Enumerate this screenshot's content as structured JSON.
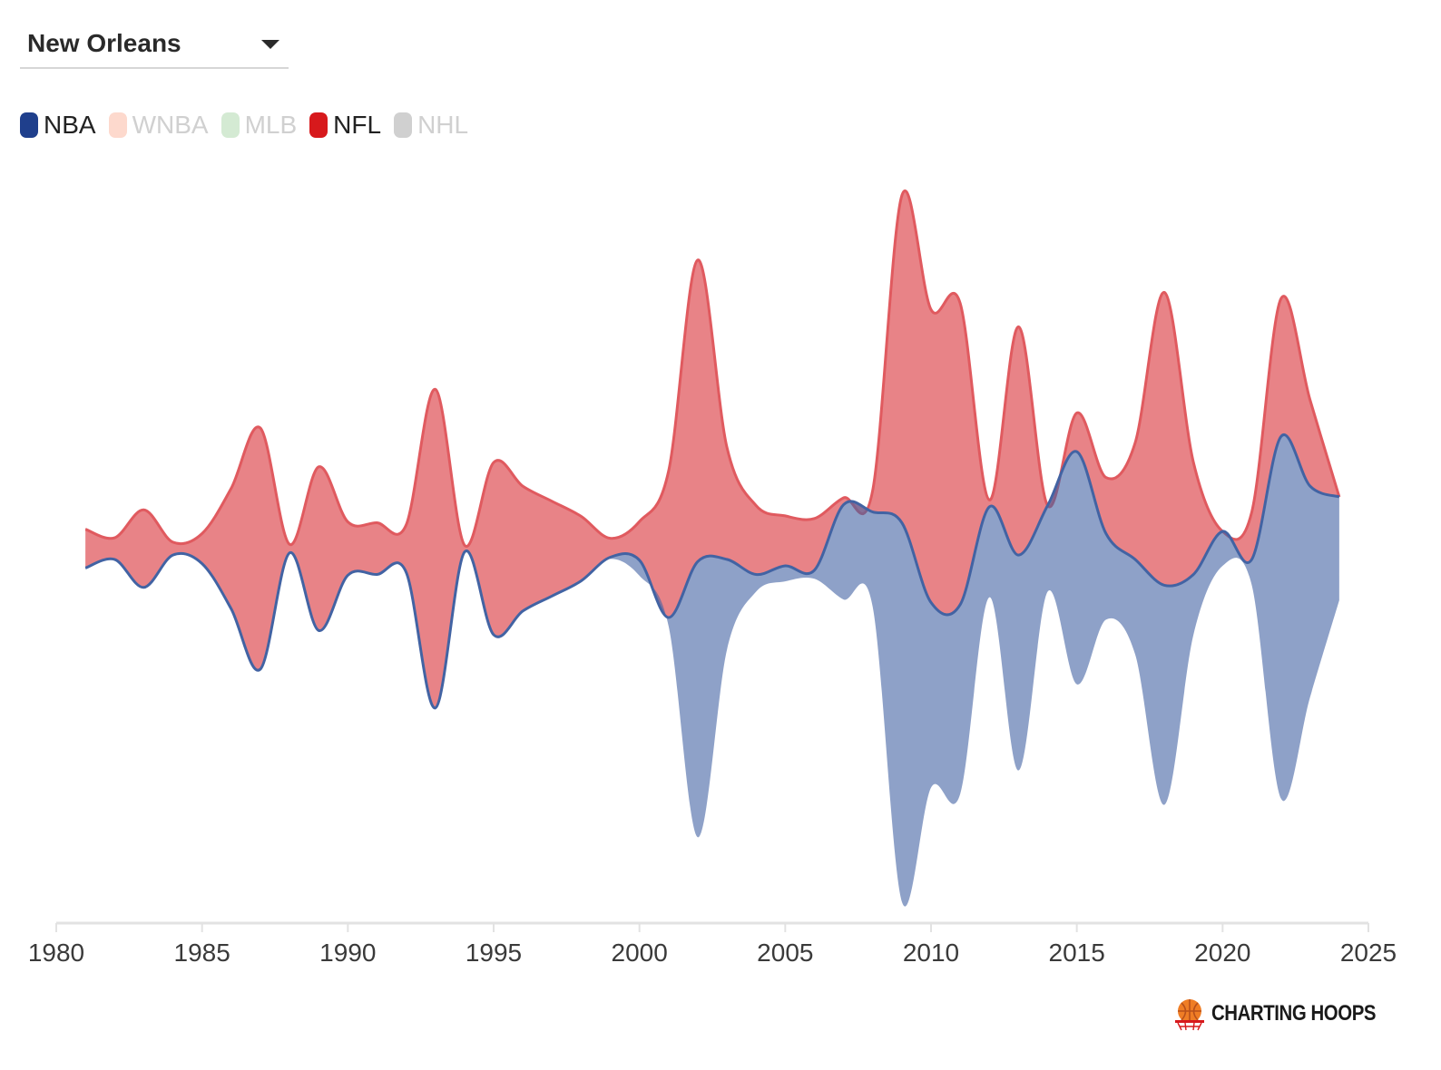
{
  "dropdown": {
    "selected": "New Orleans"
  },
  "legend": [
    {
      "label": "NBA",
      "color": "#1f3f8c",
      "active": true
    },
    {
      "label": "WNBA",
      "color": "#fdd9cd",
      "active": false
    },
    {
      "label": "MLB",
      "color": "#d4ead3",
      "active": false
    },
    {
      "label": "NFL",
      "color": "#d7191c",
      "active": true
    },
    {
      "label": "NHL",
      "color": "#d0d0d0",
      "active": false
    }
  ],
  "brand": {
    "name": "CHARTING HOOPS",
    "icon": "basketball-hoop-icon"
  },
  "chart_data": {
    "type": "area",
    "subtype": "streamgraph",
    "title": "",
    "xlabel": "",
    "ylabel": "",
    "x_ticks": [
      1980,
      1985,
      1990,
      1995,
      2000,
      2005,
      2010,
      2015,
      2020,
      2025
    ],
    "xlim": [
      1980,
      2025
    ],
    "grid": false,
    "years": [
      1981,
      1982,
      1983,
      1984,
      1985,
      1986,
      1987,
      1988,
      1989,
      1990,
      1991,
      1992,
      1993,
      1994,
      1995,
      1996,
      1997,
      1998,
      1999,
      2000,
      2001,
      2002,
      2003,
      2004,
      2005,
      2006,
      2007,
      2008,
      2009,
      2010,
      2011,
      2012,
      2013,
      2014,
      2015,
      2016,
      2017,
      2018,
      2019,
      2020,
      2021,
      2022,
      2023,
      2024
    ],
    "series": [
      {
        "name": "NFL",
        "color": "#e05a5f",
        "values": [
          0.45,
          0.25,
          0.9,
          0.15,
          0.35,
          1.4,
          2.8,
          0.1,
          1.9,
          0.62,
          0.6,
          0.55,
          3.7,
          0.08,
          2.0,
          1.45,
          1.1,
          0.75,
          0.22,
          0.45,
          1.7,
          3.5,
          1.3,
          0.8,
          0.58,
          0.6,
          0.08,
          0.25,
          3.8,
          3.4,
          3.5,
          0.08,
          2.65,
          0.0,
          0.45,
          0.65,
          1.35,
          3.4,
          1.3,
          0.0,
          0.55,
          1.6,
          1.0,
          0.0
        ]
      },
      {
        "name": "NBA",
        "color": "#4263a3",
        "values": [
          0,
          0,
          0,
          0,
          0,
          0,
          0,
          0,
          0,
          0,
          0,
          0,
          0,
          0,
          0,
          0,
          0,
          0,
          0.02,
          0.18,
          0.1,
          3.2,
          1.05,
          0.2,
          0.18,
          0.1,
          1.1,
          1.1,
          4.4,
          2.15,
          2.2,
          1.05,
          2.5,
          1.0,
          2.7,
          1.0,
          1.1,
          2.55,
          0.7,
          0.4,
          0.3,
          4.2,
          2.45,
          1.2
        ]
      }
    ]
  }
}
